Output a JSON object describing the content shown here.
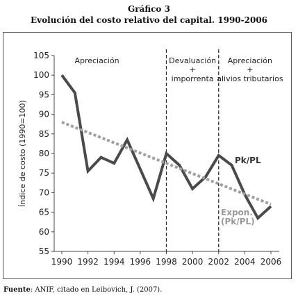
{
  "chart_data": {
    "type": "line",
    "title": "Gráfico 3",
    "subtitle": "Evolución del costo relativo del capital. 1990-2006",
    "ylabel": "Índice de costo (1990=100)",
    "xlabel": "",
    "xlim": [
      1989.5,
      2006.8
    ],
    "ylim": [
      55,
      105
    ],
    "x_ticks": [
      1990,
      1992,
      1994,
      1996,
      1998,
      2000,
      2002,
      2004,
      2006
    ],
    "y_ticks": [
      55,
      60,
      65,
      70,
      75,
      80,
      85,
      90,
      95,
      100,
      105
    ],
    "grid": false,
    "series": [
      {
        "name": "Pk/PL",
        "color": "#4a4a4a",
        "style": "solid",
        "x": [
          1990,
          1991,
          1992,
          1993,
          1994,
          1995,
          1996,
          1997,
          1998,
          1999,
          2000,
          2001,
          2002,
          2003,
          2004,
          2005,
          2006
        ],
        "values": [
          100,
          95.5,
          75.5,
          79,
          77.5,
          83.5,
          76,
          68.5,
          80,
          77,
          71,
          74,
          79.5,
          77,
          69.5,
          63.5,
          66.5
        ]
      },
      {
        "name": "Expon. (Pk/PL)",
        "color": "#a0a0a0",
        "style": "dotted",
        "x": [
          1990,
          2006
        ],
        "values": [
          88,
          67
        ]
      }
    ],
    "periods": [
      {
        "label_lines": [
          "Apreciación"
        ],
        "from": 1989.5,
        "to": 1998
      },
      {
        "label_lines": [
          "Devaluación",
          "+",
          "imporrenta"
        ],
        "from": 1998,
        "to": 2002
      },
      {
        "label_lines": [
          "Apreciación",
          "+",
          "alivios tributarios"
        ],
        "from": 2002,
        "to": 2006.8
      }
    ],
    "dividers_x": [
      1998,
      2002
    ],
    "series_labels": [
      {
        "lines": [
          "Pk/PL"
        ]
      },
      {
        "lines": [
          "Expon.",
          "(Pk/PL)"
        ]
      }
    ]
  },
  "source": {
    "label": "Fuente",
    "text": ": ANIF, citado en Leibovich, J. (2007)."
  }
}
